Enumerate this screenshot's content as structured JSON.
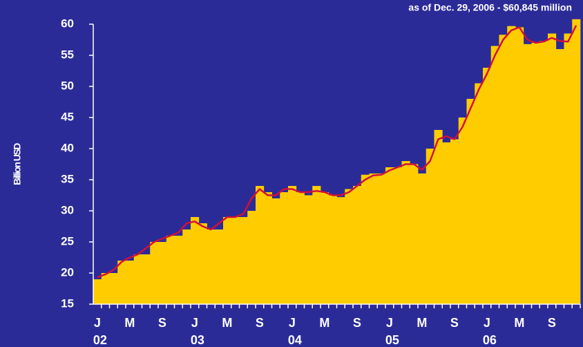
{
  "chart_data": {
    "type": "bar",
    "title": "as of Dec. 29, 2006 - $60,845 million",
    "y_label": "Billion USD",
    "categories": [
      "J",
      null,
      null,
      null,
      "M",
      null,
      null,
      null,
      "S",
      null,
      null,
      null,
      "J",
      null,
      null,
      null,
      "M",
      null,
      null,
      null,
      "S",
      null,
      null,
      null,
      "J",
      null,
      null,
      null,
      "M",
      null,
      null,
      null,
      "S",
      null,
      null,
      null,
      "J",
      null,
      null,
      null,
      "M",
      null,
      null,
      null,
      "S",
      null,
      null,
      null,
      "J",
      null,
      null,
      null,
      "M",
      null,
      null,
      null,
      "S",
      null,
      null,
      null
    ],
    "years": [
      "02",
      "03",
      "04",
      "05",
      "06"
    ],
    "series": [
      {
        "color": "#ffcc00",
        "values": [
          19,
          20,
          20,
          22,
          22,
          23,
          23,
          25,
          25,
          26,
          26,
          27,
          29,
          28,
          27,
          27,
          29,
          29,
          29,
          30,
          34,
          33,
          32,
          33,
          34,
          33,
          32.5,
          34,
          33,
          32.5,
          32.2,
          33.5,
          34,
          35.8,
          36,
          36,
          37,
          37,
          38,
          37.5,
          36,
          40,
          43,
          41,
          41.5,
          45,
          48,
          50.5,
          53,
          56.5,
          58.3,
          59.7,
          59.5,
          56.8,
          57,
          57.3,
          58.5,
          56,
          58.5,
          60.8
        ]
      },
      {
        "type": "line",
        "color": "#d0103a",
        "values": [
          19.3,
          19.8,
          20.5,
          21.8,
          22.5,
          23,
          24,
          25,
          25.5,
          26,
          26.5,
          28,
          28.3,
          27.5,
          27,
          28,
          29,
          29,
          29.5,
          32,
          33.5,
          32.5,
          32.5,
          33.5,
          33.5,
          33,
          33,
          33.2,
          33,
          32.5,
          32.5,
          33,
          34,
          35,
          35.7,
          35.8,
          36.5,
          37,
          37.5,
          37.5,
          36.6,
          38,
          41.5,
          42,
          41.5,
          43.5,
          46.5,
          49.5,
          52,
          55,
          57.5,
          59,
          59.5,
          57.5,
          57,
          57.2,
          57.8,
          57.3,
          57.2,
          59.8
        ]
      }
    ],
    "ylim": [
      15,
      60
    ],
    "yticks": [
      15,
      20,
      25,
      30,
      35,
      40,
      45,
      50,
      55,
      60
    ]
  }
}
